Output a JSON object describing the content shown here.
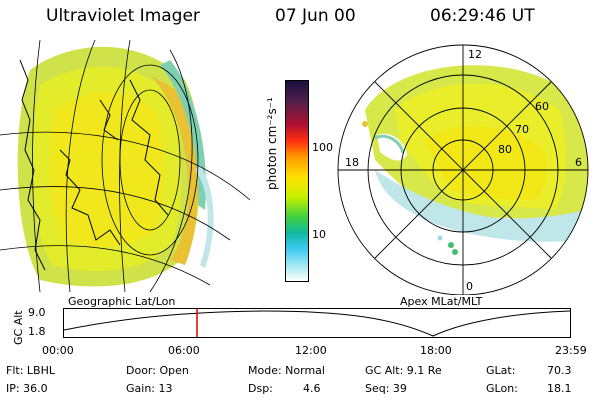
{
  "header": {
    "title": "Ultraviolet Imager",
    "date": "07 Jun 00",
    "time": "06:29:46 UT"
  },
  "colorbar": {
    "unit_label": "photon cm⁻²s⁻¹",
    "ticks": [
      "100",
      "10"
    ]
  },
  "left_panel": {
    "label": "Geographic Lat/Lon"
  },
  "right_panel": {
    "label": "Apex MLat/MLT",
    "mlt_labels": [
      "12",
      "18",
      "6",
      "0"
    ],
    "lat_labels": [
      "60",
      "70",
      "80"
    ]
  },
  "altitude_plot": {
    "ylabel": "GC Alt",
    "yticks": [
      "9.0",
      "1.8"
    ],
    "xticks": [
      "00:00",
      "06:00",
      "12:00",
      "18:00",
      "23:59"
    ],
    "current_time_marker_color": "#e00000"
  },
  "footer": {
    "col1": [
      "Flt: LBHL",
      "IP: 36.0"
    ],
    "col2": [
      "Door: Open",
      "Gain: 13"
    ],
    "col3": [
      "Mode: Normal",
      "Dsp:"
    ],
    "col3_value": "4.6",
    "col4": [
      "GC Alt: 9.1 Re",
      "Seq: 39"
    ],
    "col5": [
      "GLat:",
      "GLon:"
    ],
    "col5_values": [
      "70.3",
      "18.1"
    ]
  }
}
